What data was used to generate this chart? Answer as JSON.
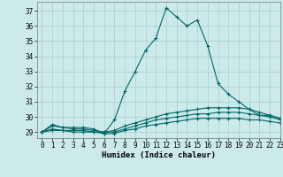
{
  "xlabel": "Humidex (Indice chaleur)",
  "background_color": "#cceaea",
  "grid_color": "#aacccc",
  "line_color": "#006666",
  "xlim": [
    -0.5,
    23
  ],
  "ylim": [
    28.6,
    37.6
  ],
  "yticks": [
    29,
    30,
    31,
    32,
    33,
    34,
    35,
    36,
    37
  ],
  "xticks": [
    0,
    1,
    2,
    3,
    4,
    5,
    6,
    7,
    8,
    9,
    10,
    11,
    12,
    13,
    14,
    15,
    16,
    17,
    18,
    19,
    20,
    21,
    22,
    23
  ],
  "lines": [
    [
      29.0,
      29.5,
      29.3,
      29.3,
      29.3,
      29.2,
      28.9,
      29.8,
      31.7,
      33.0,
      34.4,
      35.2,
      37.2,
      36.6,
      36.0,
      36.4,
      34.7,
      32.2,
      31.5,
      31.0,
      30.5,
      30.1,
      30.1,
      29.9
    ],
    [
      29.0,
      29.4,
      29.3,
      29.2,
      29.2,
      29.1,
      29.0,
      29.1,
      29.4,
      29.6,
      29.8,
      30.0,
      30.2,
      30.3,
      30.4,
      30.5,
      30.6,
      30.6,
      30.6,
      30.6,
      30.5,
      30.3,
      30.1,
      29.9
    ],
    [
      29.0,
      29.2,
      29.1,
      29.1,
      29.1,
      29.0,
      29.0,
      29.0,
      29.2,
      29.4,
      29.6,
      29.8,
      29.9,
      30.0,
      30.1,
      30.2,
      30.2,
      30.3,
      30.3,
      30.3,
      30.2,
      30.1,
      30.0,
      29.8
    ],
    [
      29.0,
      29.1,
      29.1,
      29.0,
      29.0,
      29.0,
      28.9,
      28.9,
      29.1,
      29.2,
      29.4,
      29.5,
      29.6,
      29.7,
      29.8,
      29.9,
      29.9,
      29.9,
      29.9,
      29.9,
      29.8,
      29.8,
      29.7,
      29.6
    ]
  ]
}
